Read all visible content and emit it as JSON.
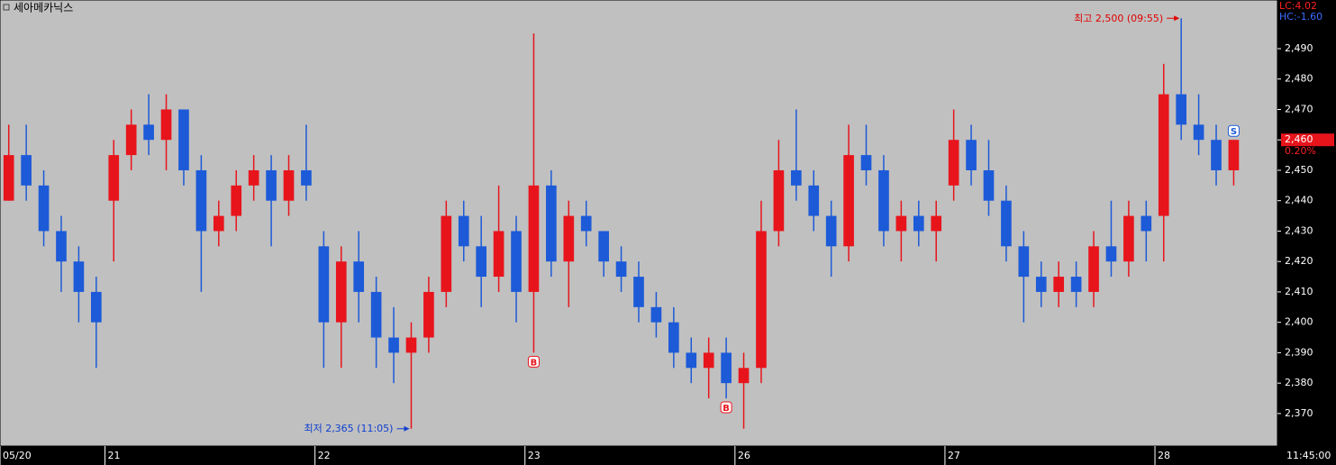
{
  "chart_data": {
    "type": "candlestick",
    "title": "세아메카닉스",
    "up_color": "#e8141c",
    "down_color": "#1c5ad8",
    "open": [
      2440,
      2455,
      2445,
      2430,
      2420,
      2410,
      2440,
      2455,
      2465,
      2460,
      2470,
      2450,
      2430,
      2435,
      2445,
      2450,
      2440,
      2450,
      2425,
      2400,
      2420,
      2410,
      2395,
      2390,
      2395,
      2410,
      2435,
      2425,
      2415,
      2430,
      2410,
      2445,
      2420,
      2435,
      2430,
      2420,
      2415,
      2405,
      2400,
      2390,
      2385,
      2390,
      2380,
      2385,
      2430,
      2450,
      2445,
      2435,
      2425,
      2455,
      2450,
      2430,
      2435,
      2430,
      2445,
      2460,
      2450,
      2440,
      2425,
      2415,
      2410,
      2415,
      2410,
      2425,
      2420,
      2435,
      2435,
      2475,
      2465,
      2460,
      2450
    ],
    "high": [
      2465,
      2465,
      2450,
      2435,
      2425,
      2415,
      2460,
      2470,
      2475,
      2475,
      2470,
      2455,
      2440,
      2450,
      2455,
      2455,
      2455,
      2465,
      2430,
      2425,
      2430,
      2415,
      2405,
      2400,
      2415,
      2440,
      2440,
      2435,
      2445,
      2435,
      2495,
      2450,
      2440,
      2440,
      2430,
      2425,
      2420,
      2410,
      2405,
      2395,
      2395,
      2395,
      2390,
      2440,
      2460,
      2470,
      2450,
      2440,
      2465,
      2465,
      2455,
      2440,
      2440,
      2440,
      2470,
      2465,
      2460,
      2445,
      2430,
      2420,
      2420,
      2420,
      2430,
      2440,
      2440,
      2440,
      2485,
      2500,
      2475,
      2465,
      2460
    ],
    "low": [
      2440,
      2440,
      2425,
      2410,
      2400,
      2385,
      2420,
      2450,
      2455,
      2450,
      2445,
      2410,
      2425,
      2430,
      2440,
      2425,
      2435,
      2440,
      2385,
      2385,
      2400,
      2385,
      2380,
      2365,
      2390,
      2405,
      2420,
      2405,
      2410,
      2400,
      2390,
      2415,
      2405,
      2425,
      2415,
      2410,
      2400,
      2395,
      2385,
      2380,
      2375,
      2375,
      2365,
      2380,
      2425,
      2440,
      2430,
      2415,
      2420,
      2445,
      2425,
      2420,
      2425,
      2420,
      2440,
      2445,
      2435,
      2420,
      2400,
      2405,
      2405,
      2405,
      2405,
      2415,
      2415,
      2420,
      2420,
      2460,
      2455,
      2445,
      2445
    ],
    "close": [
      2455,
      2445,
      2430,
      2420,
      2410,
      2400,
      2455,
      2465,
      2460,
      2470,
      2450,
      2430,
      2435,
      2445,
      2450,
      2440,
      2450,
      2445,
      2400,
      2420,
      2410,
      2395,
      2390,
      2395,
      2410,
      2435,
      2425,
      2415,
      2430,
      2410,
      2445,
      2420,
      2435,
      2430,
      2420,
      2415,
      2405,
      2400,
      2390,
      2385,
      2390,
      2380,
      2385,
      2430,
      2450,
      2445,
      2435,
      2425,
      2455,
      2450,
      2430,
      2435,
      2430,
      2435,
      2460,
      2450,
      2440,
      2425,
      2415,
      2410,
      2415,
      2410,
      2425,
      2420,
      2435,
      2430,
      2475,
      2465,
      2460,
      2450,
      2460
    ],
    "xlim": [
      0,
      73
    ],
    "xticks": [
      {
        "value": 0,
        "label": "05/20"
      },
      {
        "value": 6,
        "label": "21"
      },
      {
        "value": 18,
        "label": "22"
      },
      {
        "value": 30,
        "label": "23"
      },
      {
        "value": 42,
        "label": "26"
      },
      {
        "value": 54,
        "label": "27"
      },
      {
        "value": 66,
        "label": "28"
      }
    ],
    "ylim": [
      2359.3,
      2506
    ],
    "yticks": [
      {
        "value": 2370,
        "label": "2,370"
      },
      {
        "value": 2380,
        "label": "2,380"
      },
      {
        "value": 2390,
        "label": "2,390"
      },
      {
        "value": 2400,
        "label": "2,400"
      },
      {
        "value": 2410,
        "label": "2,410"
      },
      {
        "value": 2420,
        "label": "2,420"
      },
      {
        "value": 2430,
        "label": "2,430"
      },
      {
        "value": 2440,
        "label": "2,440"
      },
      {
        "value": 2450,
        "label": "2,450"
      },
      {
        "value": 2460,
        "label": "2,460"
      },
      {
        "value": 2470,
        "label": "2,470"
      },
      {
        "value": 2480,
        "label": "2,480"
      },
      {
        "value": 2490,
        "label": "2,490"
      }
    ],
    "grid": false,
    "signals": [
      {
        "index": 30,
        "label": "B"
      },
      {
        "index": 41,
        "label": "B"
      },
      {
        "index": 70,
        "label": "S"
      }
    ],
    "high_note": {
      "index": 67,
      "text": "최고 2,500 (09:55)"
    },
    "low_note": {
      "index": 23,
      "text": "최저 2,365 (11:05)"
    },
    "lc": "LC:4.02",
    "hc": "HC:-1.60",
    "last_price": {
      "value": 2460,
      "label": "2,460"
    },
    "change": "0.20%",
    "time": "11:45:00"
  }
}
